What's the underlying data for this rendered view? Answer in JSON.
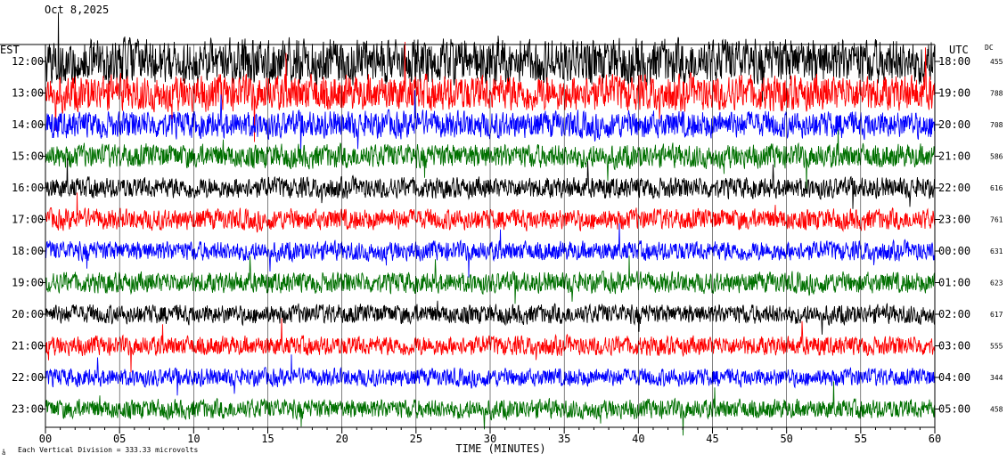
{
  "header": {
    "date": "Oct 8,2025",
    "line2": "",
    "line3": ""
  },
  "chart_data": {
    "type": "line",
    "title": "",
    "xlabel": "TIME (MINUTES)",
    "left_axis_label": "EST",
    "right_axis_label": "UTC",
    "dc_label": "DC",
    "scale_note": "Each Vertical Division =  333.33 microvolts",
    "footer_mark": "å",
    "xlim": [
      0,
      60
    ],
    "x_ticks": [
      "00",
      "05",
      "10",
      "15",
      "20",
      "25",
      "30",
      "35",
      "40",
      "45",
      "50",
      "55",
      "60"
    ],
    "trace_colors": [
      "#000000",
      "#ff0000",
      "#0000ff",
      "#007000"
    ],
    "rows": [
      {
        "est": "12:00",
        "utc": "18:00",
        "dc": "455",
        "color": "#000000",
        "amplitude": 30
      },
      {
        "est": "13:00",
        "utc": "19:00",
        "dc": "788",
        "color": "#ff0000",
        "amplitude": 24
      },
      {
        "est": "14:00",
        "utc": "20:00",
        "dc": "708",
        "color": "#0000ff",
        "amplitude": 18
      },
      {
        "est": "15:00",
        "utc": "21:00",
        "dc": "586",
        "color": "#007000",
        "amplitude": 16
      },
      {
        "est": "16:00",
        "utc": "22:00",
        "dc": "616",
        "color": "#000000",
        "amplitude": 14
      },
      {
        "est": "17:00",
        "utc": "23:00",
        "dc": "761",
        "color": "#ff0000",
        "amplitude": 14
      },
      {
        "est": "18:00",
        "utc": "00:00",
        "dc": "631",
        "color": "#0000ff",
        "amplitude": 13
      },
      {
        "est": "19:00",
        "utc": "01:00",
        "dc": "623",
        "color": "#007000",
        "amplitude": 14
      },
      {
        "est": "20:00",
        "utc": "02:00",
        "dc": "617",
        "color": "#000000",
        "amplitude": 13
      },
      {
        "est": "21:00",
        "utc": "03:00",
        "dc": "555",
        "color": "#ff0000",
        "amplitude": 13
      },
      {
        "est": "22:00",
        "utc": "04:00",
        "dc": "344",
        "color": "#0000ff",
        "amplitude": 12
      },
      {
        "est": "23:00",
        "utc": "05:00",
        "dc": "458",
        "color": "#007000",
        "amplitude": 13
      }
    ]
  }
}
